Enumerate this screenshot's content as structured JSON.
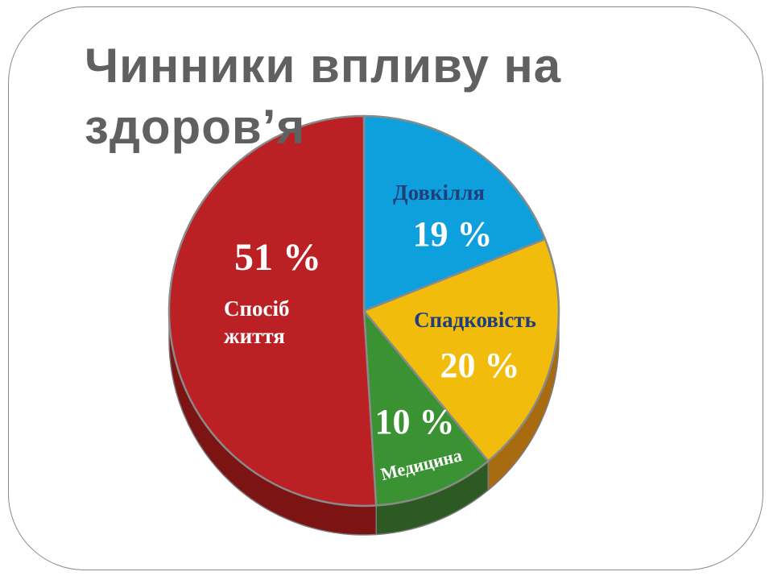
{
  "slide": {
    "title": "Чинники впливу на здоров’я"
  },
  "chart_data": {
    "type": "pie",
    "title": "",
    "slices": [
      {
        "name": "Довкілля",
        "value": 19,
        "value_label": "19  %",
        "color": "#0ea0dd",
        "side_color": "#0a7db0",
        "name_color": "#1f3f7a",
        "value_color": "#ffffff"
      },
      {
        "name": "Спадковість",
        "value": 20,
        "value_label": "20  %",
        "color": "#f2bc0c",
        "side_color": "#a96b10",
        "name_color": "#1f3f7a",
        "value_color": "#ffffff"
      },
      {
        "name": "Медицина",
        "value": 10,
        "value_label": "10  %",
        "color": "#3b9233",
        "side_color": "#2c5a22",
        "name_color": "#ffffff",
        "value_color": "#ffffff"
      },
      {
        "name": "Спосіб життя",
        "value": 51,
        "value_label": "51  %",
        "name_lines": [
          "Спосіб",
          "життя"
        ],
        "color": "#bb2024",
        "side_color": "#7c1414",
        "name_color": "#ffffff",
        "value_color": "#ffffff"
      }
    ],
    "legend": "none"
  }
}
